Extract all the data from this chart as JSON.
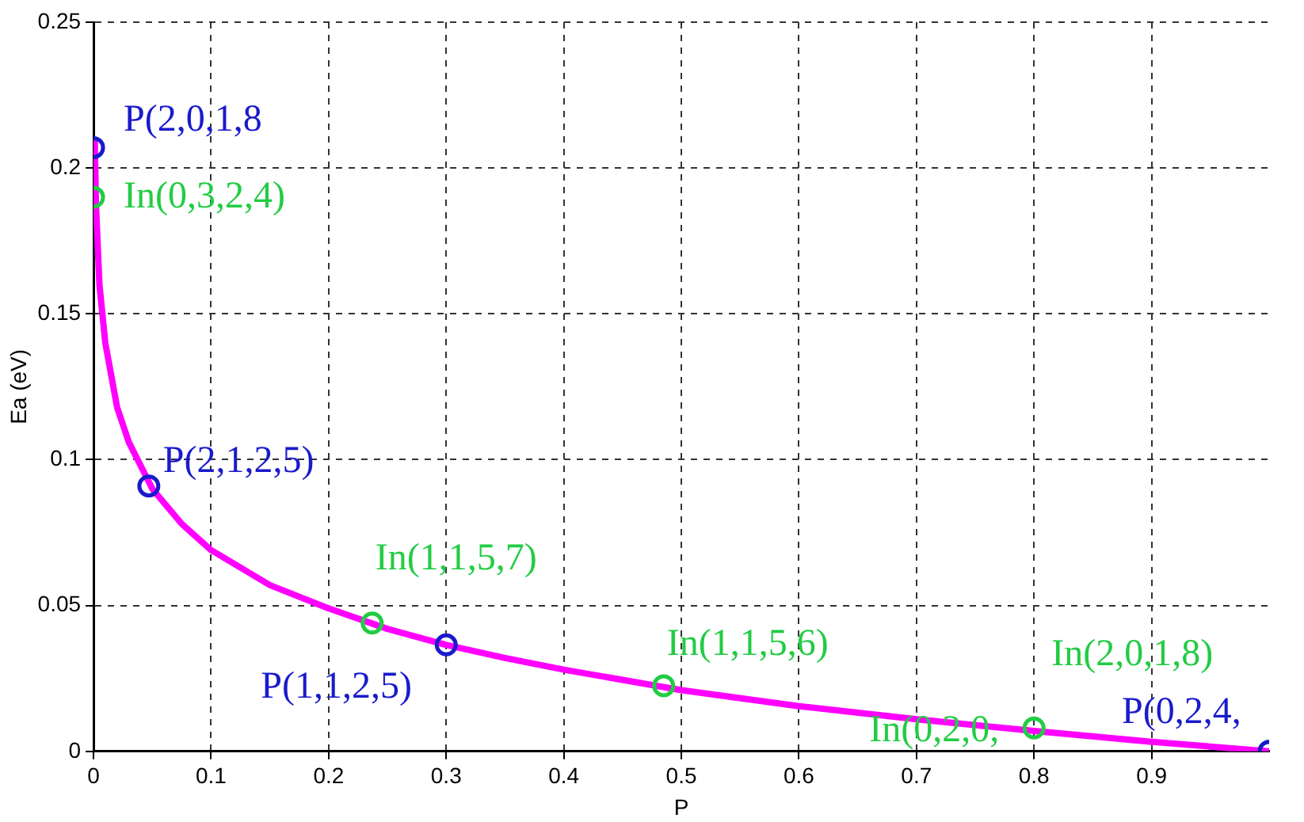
{
  "chart_data": {
    "type": "line",
    "xlabel": "P",
    "ylabel": "Ea (eV)",
    "xlim": [
      0,
      1
    ],
    "ylim": [
      0,
      0.25
    ],
    "xticks": [
      0,
      0.1,
      0.2,
      0.3,
      0.4,
      0.5,
      0.6,
      0.7,
      0.8,
      0.9
    ],
    "yticks": [
      0,
      0.05,
      0.1,
      0.15,
      0.2,
      0.25
    ],
    "grid": true,
    "legend": false,
    "series": [
      {
        "type": "scatter",
        "color": "#1a1acc",
        "marker": "circle",
        "x": [
          0,
          0.047,
          0.3,
          1.0
        ],
        "values": [
          0.207,
          0.091,
          0.0365,
          0.0
        ]
      },
      {
        "type": "scatter",
        "color": "#22cc44",
        "marker": "circle",
        "x": [
          0,
          0.237,
          0.485,
          0.8,
          1.0
        ],
        "values": [
          0.19,
          0.044,
          0.0225,
          0.008,
          0.0
        ]
      },
      {
        "type": "line",
        "color": "#ff00ff",
        "marker": "none",
        "line_style": "solid",
        "x": [
          0.001,
          0.002,
          0.005,
          0.01,
          0.02,
          0.03,
          0.05,
          0.075,
          0.1,
          0.15,
          0.2,
          0.25,
          0.3,
          0.35,
          0.4,
          0.5,
          0.6,
          0.7,
          0.8,
          0.9,
          1.0
        ],
        "values": [
          0.21,
          0.188,
          0.16,
          0.14,
          0.118,
          0.106,
          0.09,
          0.078,
          0.069,
          0.057,
          0.049,
          0.042,
          0.0365,
          0.032,
          0.028,
          0.021,
          0.0155,
          0.011,
          0.007,
          0.0033,
          0.0
        ]
      }
    ],
    "annotations": [
      {
        "text": "P(2,0,1,8",
        "x": 0,
        "y": 0.207
      },
      {
        "text": "In(0,3,2,4)",
        "x": 0,
        "y": 0.19
      },
      {
        "text": "P(2,1,2,5)",
        "x": 0.047,
        "y": 0.091
      },
      {
        "text": "In(1,1,5,7)",
        "x": 0.237,
        "y": 0.044
      },
      {
        "text": "P(1,1,2,5)",
        "x": 0.3,
        "y": 0.0365
      },
      {
        "text": "In(1,1,5,6)",
        "x": 0.485,
        "y": 0.0225
      },
      {
        "text": "In(0,2,0,",
        "x": 0.8,
        "y": 0.008
      },
      {
        "text": "In(2,0,1,8)",
        "x": 0.8,
        "y": 0.008
      },
      {
        "text": "P(0,2,4,",
        "x": 1.0,
        "y": 0.0
      }
    ]
  }
}
